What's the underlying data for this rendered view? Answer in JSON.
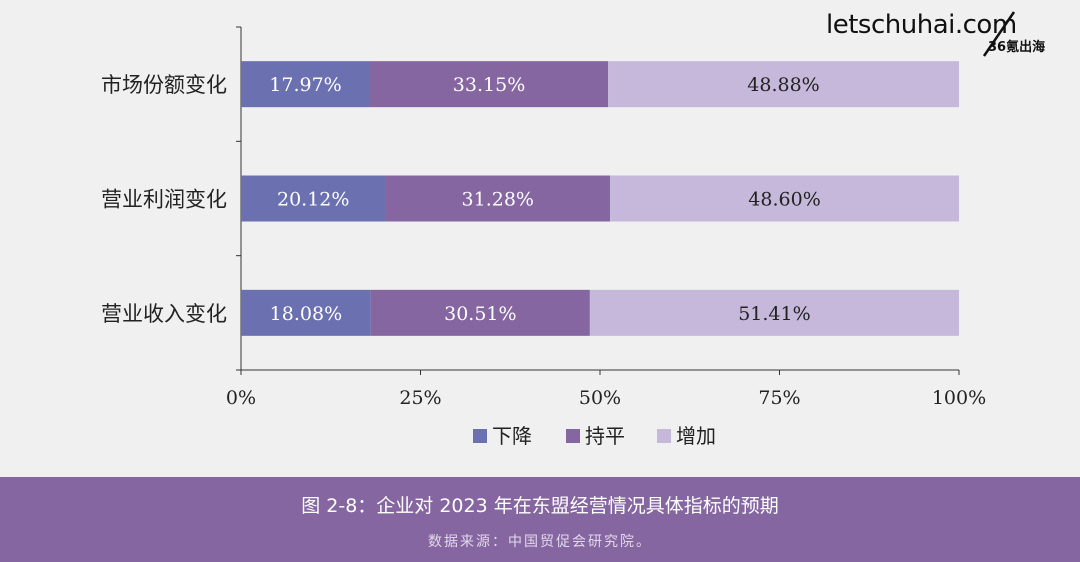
{
  "watermark": {
    "site": "letschuhai.com",
    "sub": "36氪出海"
  },
  "caption": "图 2-8：企业对 2023 年在东盟经营情况具体指标的预期",
  "source": "数据来源：中国贸促会研究院。",
  "chart_data": {
    "type": "bar",
    "orientation": "horizontal",
    "stacked": true,
    "percent": true,
    "categories": [
      "市场份额变化",
      "营业利润变化",
      "营业收入变化"
    ],
    "series": [
      {
        "name": "下降",
        "color": "#6b70b0",
        "values": [
          17.97,
          20.12,
          18.08
        ],
        "labels": [
          "17.97%",
          "20.12%",
          "18.08%"
        ]
      },
      {
        "name": "持平",
        "color": "#8566a0",
        "values": [
          33.15,
          31.28,
          30.51
        ],
        "labels": [
          "33.15%",
          "31.28%",
          "30.51%"
        ]
      },
      {
        "name": "增加",
        "color": "#c5b8db",
        "values": [
          48.88,
          48.6,
          51.41
        ],
        "labels": [
          "48.88%",
          "48.60%",
          "51.41%"
        ]
      }
    ],
    "xlim": [
      0,
      100
    ],
    "xticks": [
      0,
      25,
      50,
      75,
      100
    ],
    "xtick_labels": [
      "0%",
      "25%",
      "50%",
      "75%",
      "100%"
    ],
    "legend_position": "bottom",
    "grid": false
  }
}
